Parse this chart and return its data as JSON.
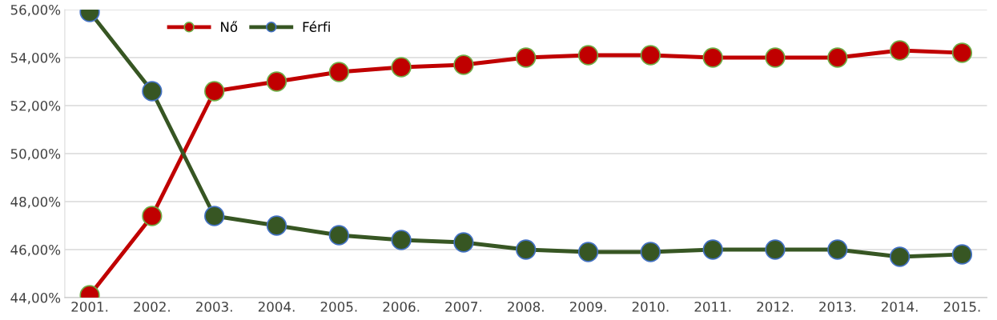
{
  "chart_data": {
    "type": "line",
    "categories": [
      "2001.",
      "2002.",
      "2003.",
      "2004.",
      "2005.",
      "2006.",
      "2007.",
      "2008.",
      "2009.",
      "2010.",
      "2011.",
      "2012.",
      "2013.",
      "2014.",
      "2015."
    ],
    "series": [
      {
        "name": "Nő",
        "color": "#c00000",
        "values": [
          44.1,
          47.4,
          52.6,
          53.0,
          53.4,
          53.6,
          53.7,
          54.0,
          54.1,
          54.1,
          54.0,
          54.0,
          54.0,
          54.3,
          54.2
        ]
      },
      {
        "name": "Férfi",
        "color": "#375623",
        "values": [
          55.9,
          52.6,
          47.4,
          47.0,
          46.6,
          46.4,
          46.3,
          46.0,
          45.9,
          45.9,
          46.0,
          46.0,
          46.0,
          45.7,
          45.8
        ]
      }
    ],
    "ylim": [
      44,
      56
    ],
    "yticks": [
      {
        "value": 44,
        "label": "44,00%"
      },
      {
        "value": 46,
        "label": "46,00%"
      },
      {
        "value": 48,
        "label": "48,00%"
      },
      {
        "value": 50,
        "label": "50,00%"
      },
      {
        "value": 52,
        "label": "52,00%"
      },
      {
        "value": 54,
        "label": "54,00%"
      },
      {
        "value": 56,
        "label": "56,00%"
      }
    ],
    "grid": "y",
    "legend": "top left",
    "marker": "circle",
    "line_style": "solid"
  }
}
